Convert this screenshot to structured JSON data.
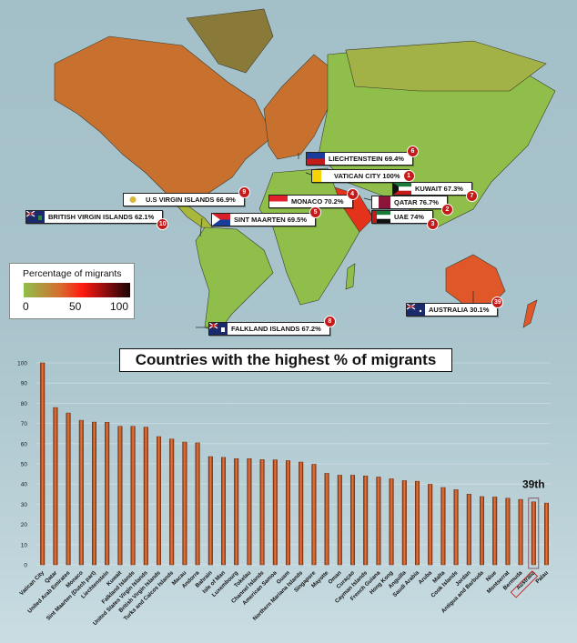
{
  "map": {
    "legend": {
      "title": "Percentage of migrants",
      "ticks": [
        "0",
        "50",
        "100"
      ]
    },
    "colors": {
      "low": "#8fbf4a",
      "mid": "#ff1a10",
      "high": "#1a0505",
      "ocean": "#a9c4cc"
    },
    "callouts": [
      {
        "rank": "6",
        "label": "LIECHTENSTEIN 69.4%"
      },
      {
        "rank": "1",
        "label": "VATICAN CITY 100%"
      },
      {
        "rank": "7",
        "label": "KUWAIT 67.3%"
      },
      {
        "rank": "4",
        "label": "MONACO 70.2%"
      },
      {
        "rank": "2",
        "label": "QATAR 76.7%"
      },
      {
        "rank": "3",
        "label": "UAE 74%"
      },
      {
        "rank": "9",
        "label": "U.S VIRGIN ISLANDS 66.9%"
      },
      {
        "rank": "10",
        "label": "BRITISH VIRGIN ISLANDS 62.1%"
      },
      {
        "rank": "5",
        "label": "SINT MAARTEN 69.5%"
      },
      {
        "rank": "8",
        "label": "FALKLAND ISLANDS 67.2%"
      },
      {
        "rank": "39",
        "label": "AUSTRALIA 30.1%"
      }
    ]
  },
  "chart_data": {
    "type": "bar",
    "title": "Countries with the highest % of migrants",
    "xlabel": "",
    "ylabel": "",
    "ylim": [
      0,
      100
    ],
    "yticks": [
      0,
      10,
      20,
      30,
      40,
      50,
      60,
      70,
      80,
      90,
      100
    ],
    "grid": true,
    "bar_color": "#c8582a",
    "highlight": {
      "category": "Australia",
      "annotation": "39th",
      "color": "#c41a1a"
    },
    "categories": [
      "Vatican City",
      "Qatar",
      "United Arab Emirates",
      "Monaco",
      "Sint Maarten (Dutch part)",
      "Liechtenstein",
      "Kuwait",
      "Falkland Islands",
      "United States Virgin Islands",
      "British Virgin Islands",
      "Turks and Caicos Islands",
      "Macau",
      "Andorra",
      "Bahrain",
      "Isle of Man",
      "Luxembourg",
      "Tokelau",
      "Channel Islands",
      "American Samoa",
      "Guam",
      "Northern Mariana Islands",
      "Singapore",
      "Mayotte",
      "Oman",
      "Curaçao",
      "Cayman Islands",
      "French Guiana",
      "Hong Kong",
      "Anguilla",
      "Saudi Arabia",
      "Aruba",
      "Malta",
      "Cook Islands",
      "Jordan",
      "Antigua and Barbuda",
      "Niue",
      "Montserrat",
      "Bermuda",
      "Australia",
      "Palau"
    ],
    "values": [
      100,
      77.9,
      75.2,
      71.6,
      70.7,
      70.6,
      68.6,
      68.6,
      68.2,
      63.5,
      62.3,
      60.8,
      60.4,
      53.6,
      53.2,
      52.6,
      52.6,
      52.1,
      52.0,
      51.6,
      50.9,
      49.8,
      45.3,
      44.4,
      44.4,
      44.0,
      43.5,
      42.6,
      41.7,
      41.4,
      39.9,
      38.3,
      37.2,
      35.0,
      33.8,
      33.6,
      33.0,
      32.4,
      31.2,
      30.6
    ]
  }
}
